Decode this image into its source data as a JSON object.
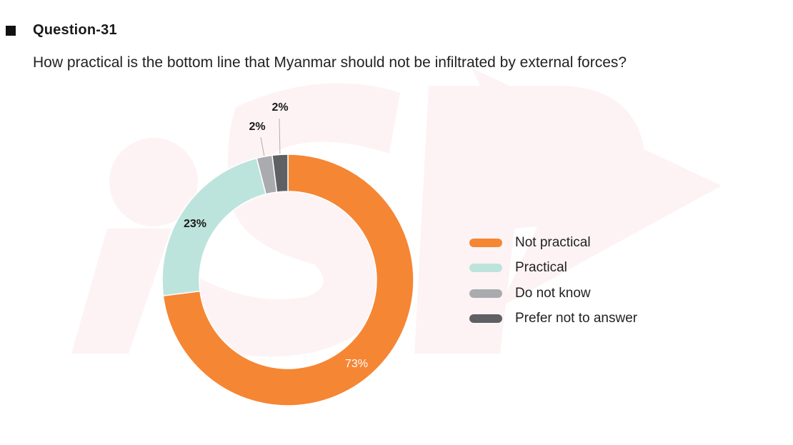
{
  "header": {
    "question_number": "Question-31",
    "question_text": "How practical is the bottom line that Myanmar should not be infiltrated by external forces?"
  },
  "chart_data": {
    "type": "pie",
    "variant": "donut",
    "categories": [
      "Not practical",
      "Practical",
      "Do not know",
      "Prefer not to answer"
    ],
    "values": [
      73,
      23,
      2,
      2
    ],
    "data_labels": [
      "73%",
      "23%",
      "2%",
      "2%"
    ],
    "colors": [
      "#F58634",
      "#BDE4DC",
      "#A9ABAE",
      "#5E6064"
    ],
    "start_angle": "12 o'clock",
    "direction": "clockwise",
    "legend_position": "right"
  }
}
